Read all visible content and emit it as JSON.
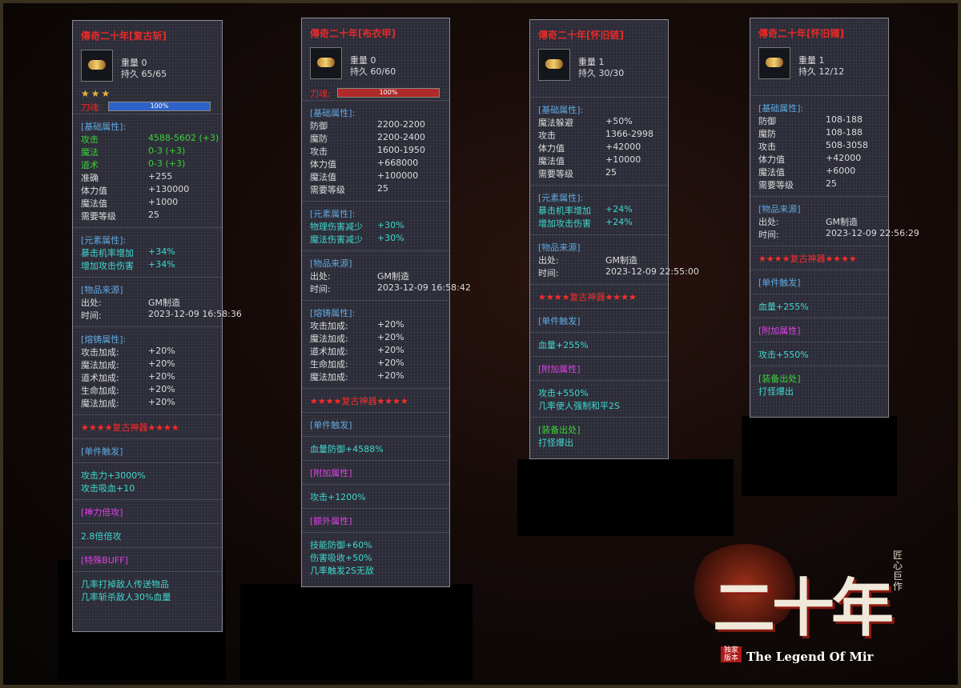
{
  "panels": [
    {
      "title": "傳奇二十年[复古斩]",
      "weight": "重量 0",
      "durability": "持久 65/65",
      "stars": "★★★",
      "bar": {
        "label": "刀魂:",
        "text": "100%",
        "color": "#2f62c8"
      },
      "sections": [
        {
          "header": "[基础属性]:",
          "rows": [
            [
              "攻击",
              "4588-5602 (+3)",
              "#3ad23a"
            ],
            [
              "魔法",
              "0-3 (+3)",
              "#3ad23a"
            ],
            [
              "道术",
              "0-3 (+3)",
              "#3ad23a"
            ],
            [
              "准确",
              "+255"
            ],
            [
              "体力值",
              "+130000"
            ],
            [
              "魔法值",
              "+1000"
            ],
            [
              "需要等级",
              "25"
            ]
          ]
        },
        {
          "header": "[元素属性]:",
          "rows": [
            [
              "暴击机率增加",
              "+34%",
              "#3fd8d0"
            ],
            [
              "增加攻击伤害",
              "+34%",
              "#3fd8d0"
            ]
          ]
        },
        {
          "header": "[物品来源]",
          "rows": [
            [
              "出处:",
              "GM制造"
            ],
            [
              "时间:",
              "2023-12-09 16:58:36"
            ]
          ]
        },
        {
          "header": "[熔铸属性]:",
          "rows": [
            [
              "攻击加成:",
              "+20%"
            ],
            [
              "魔法加成:",
              "+20%"
            ],
            [
              "道术加成:",
              "+20%"
            ],
            [
              "生命加成:",
              "+20%"
            ],
            [
              "魔法加成:",
              "+20%"
            ]
          ]
        },
        {
          "header": "★★★★复古神器★★★★",
          "header_color": "#ff2a2a"
        },
        {
          "header": "[单件触发]"
        },
        {
          "lines": [
            "攻击力+3000%",
            "攻击吸血+10"
          ]
        },
        {
          "header": "[神力倍攻]",
          "header_color": "#e040e8"
        },
        {
          "lines": [
            "2.8倍倍攻"
          ]
        },
        {
          "header": "[特殊BUFF]",
          "header_color": "#e040e8"
        },
        {
          "lines": [
            "几率打掉敌人传送物品",
            "几率斩杀敌人30%血量"
          ]
        }
      ]
    },
    {
      "title": "傳奇二十年[布衣甲]",
      "weight": "重量 0",
      "durability": "持久 60/60",
      "bar": {
        "label": "刀魂:",
        "text": "100%",
        "color": "#b02a2a"
      },
      "sections": [
        {
          "header": "[基础属性]:",
          "rows": [
            [
              "防御",
              "2200-2200"
            ],
            [
              "魔防",
              "2200-2400"
            ],
            [
              "攻击",
              "1600-1950"
            ],
            [
              "体力值",
              "+668000"
            ],
            [
              "魔法值",
              "+100000"
            ],
            [
              "需要等级",
              "25"
            ]
          ]
        },
        {
          "header": "[元素属性]:",
          "rows": [
            [
              "物理伤害减少",
              "+30%",
              "#3fd8d0"
            ],
            [
              "魔法伤害减少",
              "+30%",
              "#3fd8d0"
            ]
          ]
        },
        {
          "header": "[物品来源]",
          "rows": [
            [
              "出处:",
              "GM制造"
            ],
            [
              "时间:",
              "2023-12-09 16:58:42"
            ]
          ]
        },
        {
          "header": "[熔铸属性]:",
          "rows": [
            [
              "攻击加成:",
              "+20%"
            ],
            [
              "魔法加成:",
              "+20%"
            ],
            [
              "道术加成:",
              "+20%"
            ],
            [
              "生命加成:",
              "+20%"
            ],
            [
              "魔法加成:",
              "+20%"
            ]
          ]
        },
        {
          "header": "★★★★复古神器★★★★",
          "header_color": "#ff2a2a"
        },
        {
          "header": "[单件触发]"
        },
        {
          "lines": [
            "血量防御+4588%"
          ]
        },
        {
          "header": "[附加属性]",
          "header_color": "#e040e8"
        },
        {
          "lines": [
            "攻击+1200%"
          ]
        },
        {
          "header": "[额外属性]",
          "header_color": "#e040e8"
        },
        {
          "lines": [
            "技能防御+60%",
            "伤害吸收+50%",
            "几率触发2S无敌"
          ]
        }
      ]
    },
    {
      "title": "傳奇二十年[怀旧链]",
      "weight": "重量 1",
      "durability": "持久 30/30",
      "sections": [
        {
          "header": "[基础属性]:",
          "rows": [
            [
              "魔法躲避",
              "+50%"
            ],
            [
              "攻击",
              "1366-2998"
            ],
            [
              "体力值",
              "+42000"
            ],
            [
              "魔法值",
              "+10000"
            ],
            [
              "需要等级",
              "25"
            ]
          ]
        },
        {
          "header": "[元素属性]:",
          "rows": [
            [
              "暴击机率增加",
              "+24%",
              "#3fd8d0"
            ],
            [
              "增加攻击伤害",
              "+24%",
              "#3fd8d0"
            ]
          ]
        },
        {
          "header": "[物品来源]",
          "rows": [
            [
              "出处:",
              "GM制造"
            ],
            [
              "时间:",
              "2023-12-09 22:55:00"
            ]
          ]
        },
        {
          "header": "★★★★复古神器★★★★",
          "header_color": "#ff2a2a"
        },
        {
          "header": "[单件触发]"
        },
        {
          "lines": [
            "血量+255%"
          ]
        },
        {
          "header": "[附加属性]",
          "header_color": "#e040e8"
        },
        {
          "lines": [
            "攻击+550%",
            "几率使人强制和平2S"
          ]
        },
        {
          "header": "[装备出处]",
          "header_color": "#3ad23a",
          "lines": [
            "打怪爆出"
          ]
        }
      ]
    },
    {
      "title": "傳奇二十年[怀旧镯]",
      "weight": "重量 1",
      "durability": "持久 12/12",
      "sections": [
        {
          "header": "[基础属性]:",
          "rows": [
            [
              "防御",
              "108-188"
            ],
            [
              "魔防",
              "108-188"
            ],
            [
              "攻击",
              "508-3058"
            ],
            [
              "体力值",
              "+42000"
            ],
            [
              "魔法值",
              "+6000"
            ],
            [
              "需要等级",
              "25"
            ]
          ]
        },
        {
          "header": "[物品来源]",
          "rows": [
            [
              "出处:",
              "GM制造"
            ],
            [
              "时间:",
              "2023-12-09 22:56:29"
            ]
          ]
        },
        {
          "header": "★★★★复古神器★★★★",
          "header_color": "#ff2a2a"
        },
        {
          "header": "[单件触发]"
        },
        {
          "lines": [
            "血量+255%"
          ]
        },
        {
          "header": "[附加属性]",
          "header_color": "#e040e8"
        },
        {
          "lines": [
            "攻击+550%"
          ]
        },
        {
          "header": "[装备出处]",
          "header_color": "#3ad23a",
          "lines": [
            "打怪爆出"
          ]
        }
      ]
    }
  ],
  "logo": {
    "title": "二十年",
    "slogan": "匠心巨作",
    "badge": "独家版本",
    "subtitle": "The Legend Of Mir"
  }
}
